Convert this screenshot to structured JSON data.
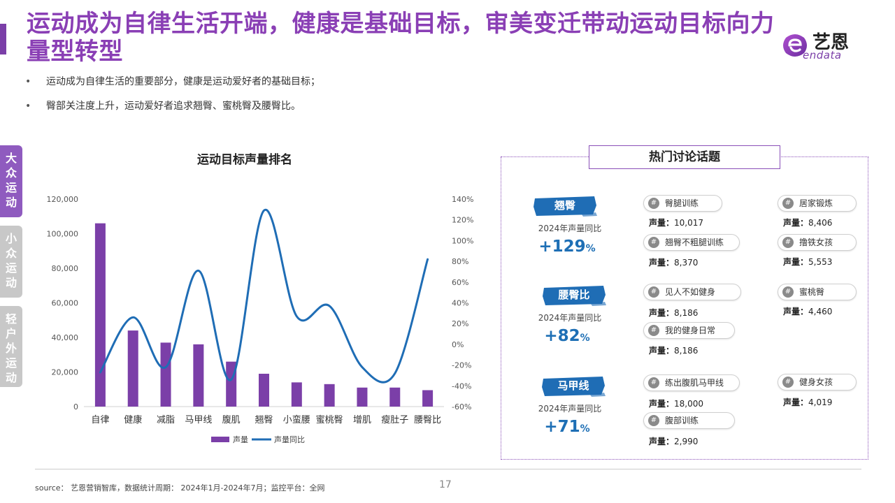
{
  "title": "运动成为自律生活开端，健康是基础目标，审美变迁带动运动目标向力量型转型",
  "logo": {
    "cn": "艺恩",
    "en": "endata",
    "brand_color": "#7b3fa8"
  },
  "bullets": [
    "运动成为自律生活的重要部分，健康是运动爱好者的基础目标；",
    "臀部关注度上升，运动爱好者追求翘臀、蜜桃臀及腰臀比。"
  ],
  "side_tabs": [
    {
      "label": "大众运动",
      "active": true
    },
    {
      "label": "小众运动",
      "active": false
    },
    {
      "label": "轻户外运动",
      "active": false
    }
  ],
  "chart_data": {
    "type": "bar",
    "title": "运动目标声量排名",
    "categories": [
      "自律",
      "健康",
      "减脂",
      "马甲线",
      "腹肌",
      "翘臀",
      "小蛮腰",
      "蜜桃臀",
      "增肌",
      "瘦肚子",
      "腰臀比"
    ],
    "series": [
      {
        "name": "声量",
        "type": "bar",
        "axis": "left",
        "color": "#7b3fa8",
        "values": [
          106000,
          44000,
          37000,
          36000,
          26000,
          19000,
          14000,
          13000,
          11000,
          11000,
          9500
        ]
      },
      {
        "name": "声量同比",
        "type": "line",
        "axis": "right",
        "color": "#1f6db5",
        "values": [
          -27,
          26,
          -22,
          71,
          -34,
          129,
          27,
          37,
          -22,
          -28,
          82
        ]
      }
    ],
    "left_axis": {
      "ylim": [
        0,
        120000
      ],
      "ticks": [
        0,
        20000,
        40000,
        60000,
        80000,
        100000,
        120000
      ],
      "tick_labels": [
        "0",
        "20,000",
        "40,000",
        "60,000",
        "80,000",
        "100,000",
        "120,000"
      ]
    },
    "right_axis": {
      "ylim": [
        -60,
        140
      ],
      "ticks": [
        -60,
        -40,
        -20,
        0,
        20,
        40,
        60,
        80,
        100,
        120,
        140
      ],
      "tick_labels": [
        "-60%",
        "-40%",
        "-20%",
        "0%",
        "20%",
        "40%",
        "60%",
        "80%",
        "100%",
        "120%",
        "140%"
      ]
    },
    "grid": false,
    "legend_position": "bottom"
  },
  "hot_topics": {
    "title": "热门讨论话题",
    "yoy_label": "2024年声量同比",
    "vol_label": "声量：",
    "topics": [
      {
        "name": "翘臀",
        "yoy": "+129",
        "pct": "%",
        "tags": [
          {
            "name": "臀腿训练",
            "volume": "10,017"
          },
          {
            "name": "居家锻炼",
            "volume": "8,406"
          },
          {
            "name": "翘臀不粗腿训练",
            "volume": "8,370"
          },
          {
            "name": "撸铁女孩",
            "volume": "5,553"
          }
        ]
      },
      {
        "name": "腰臀比",
        "yoy": "+82",
        "pct": "%",
        "tags": [
          {
            "name": "见人不如健身",
            "volume": "8,186"
          },
          {
            "name": "蜜桃臀",
            "volume": "4,460"
          },
          {
            "name": "我的健身日常",
            "volume": "8,186"
          }
        ]
      },
      {
        "name": "马甲线",
        "yoy": "+71",
        "pct": "%",
        "tags": [
          {
            "name": "练出腹肌马甲线",
            "volume": "18,000"
          },
          {
            "name": "健身女孩",
            "volume": "4,019"
          },
          {
            "name": "腹部训练",
            "volume": "2,990"
          }
        ]
      }
    ]
  },
  "footer": {
    "source": "source： 艺恩营销智库，数据统计周期： 2024年1月-2024年7月；监控平台：全网",
    "page": "17"
  }
}
